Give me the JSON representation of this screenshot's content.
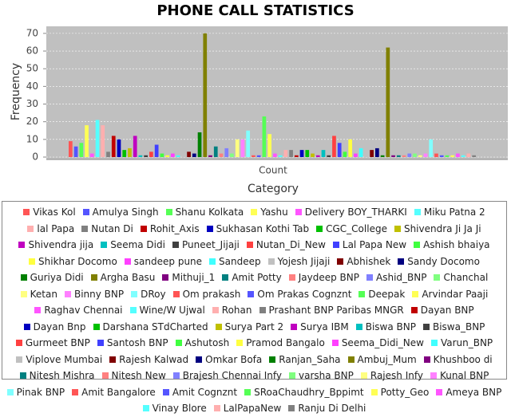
{
  "chart_data": {
    "type": "bar",
    "title": "PHONE CALL STATISTICS",
    "x_label": "Category",
    "y_label": "Frequency",
    "categories": [
      "Count"
    ],
    "ylim": [
      0,
      74
    ],
    "yticks": [
      0,
      10,
      20,
      30,
      40,
      50,
      60,
      70
    ],
    "grid": true,
    "legend": "bottom",
    "series": [
      {
        "name": "Vikas Kol",
        "color": "#FF5555",
        "values": [
          9
        ]
      },
      {
        "name": "Amulya Singh",
        "color": "#5555FF",
        "values": [
          6
        ]
      },
      {
        "name": "Shanu Kolkata",
        "color": "#55FF55",
        "values": [
          8
        ]
      },
      {
        "name": "Yashu",
        "color": "#FFFF55",
        "values": [
          18
        ]
      },
      {
        "name": "Delivery BOY_THARKI",
        "color": "#FF55FF",
        "values": [
          2
        ]
      },
      {
        "name": "Miku Patna 2",
        "color": "#55FFFF",
        "values": [
          21
        ]
      },
      {
        "name": "lal Papa",
        "color": "#FFAFAF",
        "values": [
          18
        ]
      },
      {
        "name": "Nutan Di",
        "color": "#808080",
        "values": [
          3
        ]
      },
      {
        "name": "Rohit_Axis",
        "color": "#C00000",
        "values": [
          12
        ]
      },
      {
        "name": "Sukhasan Kothi Tab",
        "color": "#0000C0",
        "values": [
          10
        ]
      },
      {
        "name": "CGC_College",
        "color": "#00C000",
        "values": [
          4
        ]
      },
      {
        "name": "Shivendra Ji Ja Ji",
        "color": "#C0C000",
        "values": [
          5
        ]
      },
      {
        "name": "Shivendra jija",
        "color": "#C000C0",
        "values": [
          12
        ]
      },
      {
        "name": "Seema Didi",
        "color": "#00C0C0",
        "values": [
          1
        ]
      },
      {
        "name": "Puneet_Jijaji",
        "color": "#404040",
        "values": [
          1
        ]
      },
      {
        "name": "Nutan_Di_New",
        "color": "#FF4040",
        "values": [
          3
        ]
      },
      {
        "name": "Lal Papa New",
        "color": "#4040FF",
        "values": [
          7
        ]
      },
      {
        "name": "Ashish bhaiya",
        "color": "#40FF40",
        "values": [
          2
        ]
      },
      {
        "name": "Shikhar Docomo",
        "color": "#FFFF40",
        "values": [
          1
        ]
      },
      {
        "name": "sandeep pune",
        "color": "#FF40FF",
        "values": [
          2
        ]
      },
      {
        "name": "Sandeep",
        "color": "#40FFFF",
        "values": [
          1
        ]
      },
      {
        "name": "Yojesh Jijaji",
        "color": "#C0C0C0",
        "values": [
          3
        ]
      },
      {
        "name": "Abhishek",
        "color": "#800000",
        "values": [
          3
        ]
      },
      {
        "name": "Sandy Docomo",
        "color": "#000080",
        "values": [
          2
        ]
      },
      {
        "name": "Guriya Didi",
        "color": "#008000",
        "values": [
          14
        ]
      },
      {
        "name": "Argha Basu",
        "color": "#808000",
        "values": [
          70
        ]
      },
      {
        "name": "Mithuji_1",
        "color": "#800080",
        "values": [
          1
        ]
      },
      {
        "name": "Amit Potty",
        "color": "#008080",
        "values": [
          6
        ]
      },
      {
        "name": "Jaydeep BNP",
        "color": "#FF8080",
        "values": [
          2
        ]
      },
      {
        "name": "Ashid_BNP",
        "color": "#8080FF",
        "values": [
          5
        ]
      },
      {
        "name": "Chanchal",
        "color": "#80FF80",
        "values": [
          2
        ]
      },
      {
        "name": "Ketan",
        "color": "#FFFF80",
        "values": [
          10
        ]
      },
      {
        "name": "Binny BNP",
        "color": "#FF80FF",
        "values": [
          10
        ]
      },
      {
        "name": "DRoy",
        "color": "#80FFFF",
        "values": [
          15
        ]
      },
      {
        "name": "Om prakash",
        "color": "#FF5555",
        "values": [
          1
        ]
      },
      {
        "name": "Om Prakas Cognznt",
        "color": "#5555FF",
        "values": [
          1
        ]
      },
      {
        "name": "Deepak",
        "color": "#55FF55",
        "values": [
          23
        ]
      },
      {
        "name": "Arvindar Paaji",
        "color": "#FFFF55",
        "values": [
          13
        ]
      },
      {
        "name": "Raghav Chennai",
        "color": "#FF55FF",
        "values": [
          2
        ]
      },
      {
        "name": "Wine/W Ujwal",
        "color": "#55FFFF",
        "values": [
          1
        ]
      },
      {
        "name": "Rohan",
        "color": "#FFAFAF",
        "values": [
          4
        ]
      },
      {
        "name": "Prashant BNP Paribas MNGR",
        "color": "#808080",
        "values": [
          4
        ]
      },
      {
        "name": "Dayan BNP",
        "color": "#C00000",
        "values": [
          1
        ]
      },
      {
        "name": "Dayan Bnp",
        "color": "#0000C0",
        "values": [
          4
        ]
      },
      {
        "name": "Darshana STdCharted",
        "color": "#00C000",
        "values": [
          4
        ]
      },
      {
        "name": "Surya Part 2",
        "color": "#C0C000",
        "values": [
          2
        ]
      },
      {
        "name": "Surya IBM",
        "color": "#C000C0",
        "values": [
          1
        ]
      },
      {
        "name": "Biswa BNP",
        "color": "#00C0C0",
        "values": [
          4
        ]
      },
      {
        "name": "Biswa_BNP",
        "color": "#404040",
        "values": [
          1
        ]
      },
      {
        "name": "Gurmeet BNP",
        "color": "#FF4040",
        "values": [
          12
        ]
      },
      {
        "name": "Santosh BNP",
        "color": "#4040FF",
        "values": [
          8
        ]
      },
      {
        "name": "Ashutosh",
        "color": "#40FF40",
        "values": [
          3
        ]
      },
      {
        "name": "Pramod Bangalo",
        "color": "#FFFF40",
        "values": [
          10
        ]
      },
      {
        "name": "Seema_Didi_New",
        "color": "#FF40FF",
        "values": [
          2
        ]
      },
      {
        "name": "Varun_BNP",
        "color": "#40FFFF",
        "values": [
          5
        ]
      },
      {
        "name": "Viplove Mumbai",
        "color": "#C0C0C0",
        "values": [
          5
        ]
      },
      {
        "name": "Rajesh Kalwad",
        "color": "#800000",
        "values": [
          4
        ]
      },
      {
        "name": "Omkar Bofa",
        "color": "#000080",
        "values": [
          5
        ]
      },
      {
        "name": "Ranjan_Saha",
        "color": "#008000",
        "values": [
          1
        ]
      },
      {
        "name": "Ambuj_Mum",
        "color": "#808000",
        "values": [
          62
        ]
      },
      {
        "name": "Khushboo di",
        "color": "#800080",
        "values": [
          1
        ]
      },
      {
        "name": "Nitesh Mishra",
        "color": "#008080",
        "values": [
          1
        ]
      },
      {
        "name": "Nitesh New",
        "color": "#FF8080",
        "values": [
          1
        ]
      },
      {
        "name": "Brajesh Chennai Infy",
        "color": "#8080FF",
        "values": [
          2
        ]
      },
      {
        "name": "varsha BNP",
        "color": "#80FF80",
        "values": [
          2
        ]
      },
      {
        "name": "Rajesh Infy",
        "color": "#FFFF80",
        "values": [
          1
        ]
      },
      {
        "name": "Kunal BNP",
        "color": "#FF80FF",
        "values": [
          2
        ]
      },
      {
        "name": "Pinak BNP",
        "color": "#80FFFF",
        "values": [
          10
        ]
      },
      {
        "name": "Amit Bangalore",
        "color": "#FF5555",
        "values": [
          2
        ]
      },
      {
        "name": "Amit Cognznt",
        "color": "#5555FF",
        "values": [
          1
        ]
      },
      {
        "name": "SRoaChaudhry_Bppimt",
        "color": "#55FF55",
        "values": [
          1
        ]
      },
      {
        "name": "Potty_Geo",
        "color": "#FFFF55",
        "values": [
          1
        ]
      },
      {
        "name": "Ameya BNP",
        "color": "#FF55FF",
        "values": [
          2
        ]
      },
      {
        "name": "Vinay Blore",
        "color": "#55FFFF",
        "values": [
          1
        ]
      },
      {
        "name": "LalPapaNew",
        "color": "#FFAFAF",
        "values": [
          2
        ]
      },
      {
        "name": "Ranju Di Delhi",
        "color": "#808080",
        "values": [
          1
        ]
      }
    ]
  }
}
